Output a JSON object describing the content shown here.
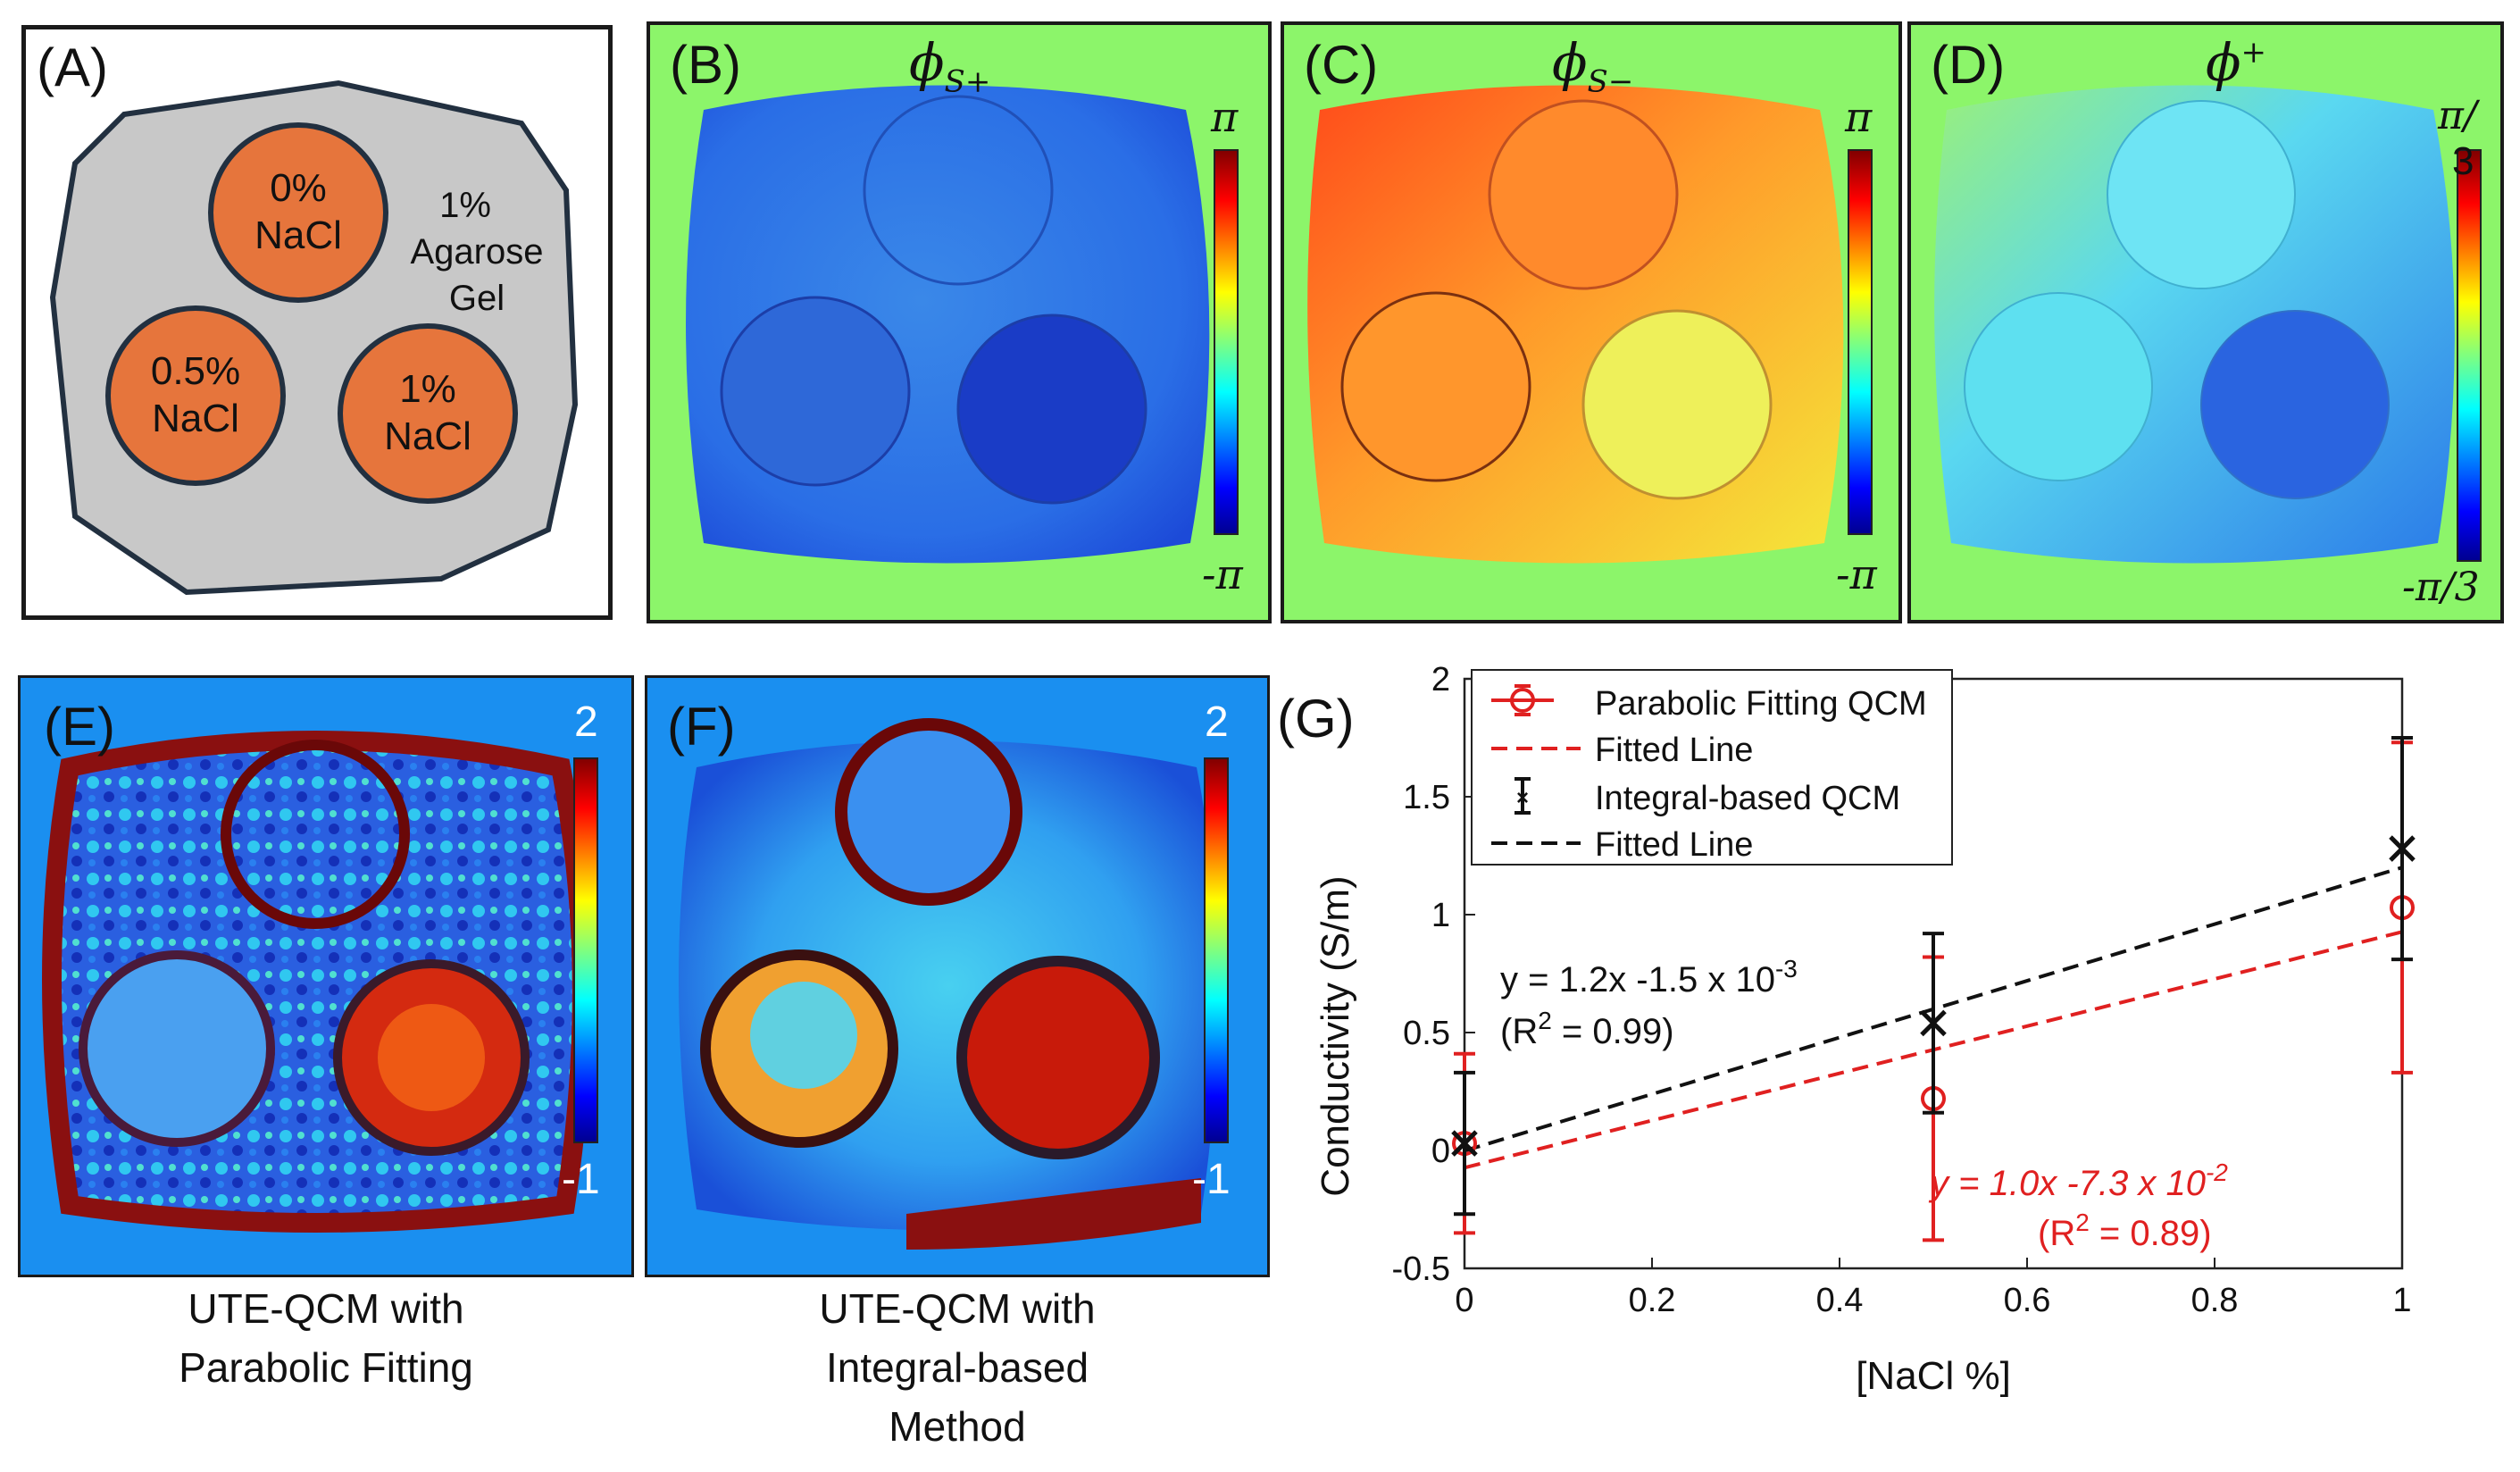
{
  "panel_a": {
    "label": "(A)",
    "circle_top": {
      "line1": "0%",
      "line2": "NaCl"
    },
    "circle_left": {
      "line1": "0.5%",
      "line2": "NaCl"
    },
    "circle_right": {
      "line1": "1%",
      "line2": "NaCl"
    },
    "gel": {
      "line1": "1%",
      "line2": "Agarose",
      "line3": "Gel"
    }
  },
  "panel_b": {
    "label": "(B)",
    "title_base": "ϕ",
    "title_sub": "S+",
    "cbar_max": "π",
    "cbar_min": "-π"
  },
  "panel_c": {
    "label": "(C)",
    "title_base": "ϕ",
    "title_sub": "S−",
    "cbar_max": "π",
    "cbar_min": "-π"
  },
  "panel_d": {
    "label": "(D)",
    "title_base": "ϕ",
    "title_sup": "+",
    "cbar_max_1": "π/",
    "cbar_max_2": "3",
    "cbar_min": "-π/3"
  },
  "panel_e": {
    "label": "(E)",
    "cbar_max": "2",
    "cbar_min": "-1",
    "caption_1": "UTE-QCM with",
    "caption_2": "Parabolic Fitting"
  },
  "panel_f": {
    "label": "(F)",
    "cbar_max": "2",
    "cbar_min": "-1",
    "caption_1": "UTE-QCM with",
    "caption_2": "Integral-based",
    "caption_3": "Method"
  },
  "colors": {
    "map_bg_green": "#8cf56a",
    "map_bg_blue": "#1a8ff0",
    "orange": "#e6753c",
    "gel_gray": "#c8c8c8",
    "red_series": "#e02020",
    "black_series": "#111111"
  },
  "chart_data": {
    "type": "scatter",
    "label": "(G)",
    "xlabel": "[NaCl %]",
    "ylabel": "Conductivity (S/m)",
    "xlim": [
      0,
      1
    ],
    "ylim": [
      -0.5,
      2
    ],
    "xticks": [
      0,
      0.2,
      0.4,
      0.6,
      0.8,
      1
    ],
    "xtick_labels": [
      "0",
      "0.2",
      "0.4",
      "0.6",
      "0.8",
      "1"
    ],
    "yticks": [
      -0.5,
      0,
      0.5,
      1,
      1.5,
      2
    ],
    "ytick_labels": [
      "-0.5",
      "0",
      "0.5",
      "1",
      "1.5",
      "2"
    ],
    "legend_position": "top-left",
    "series": [
      {
        "name": "Parabolic Fitting QCM",
        "marker": "circle",
        "color": "#e02020",
        "x": [
          0,
          0.5,
          1
        ],
        "y": [
          0.03,
          0.22,
          1.03
        ],
        "err": [
          0.38,
          0.6,
          0.7
        ]
      },
      {
        "name": "Fitted Line",
        "style": "dashed",
        "color": "#e02020",
        "x": [
          0,
          1
        ],
        "y": [
          -0.073,
          0.927
        ]
      },
      {
        "name": "Integral-based QCM",
        "marker": "x",
        "color": "#111111",
        "x": [
          0,
          0.5,
          1
        ],
        "y": [
          0.03,
          0.54,
          1.28
        ],
        "err": [
          0.3,
          0.38,
          0.47
        ]
      },
      {
        "name": "Fitted Line",
        "style": "dashed",
        "color": "#111111",
        "x": [
          0,
          1
        ],
        "y": [
          -0.0015,
          1.2
        ]
      }
    ],
    "annotations": {
      "black_eq": "y = 1.2x -1.5 x 10",
      "black_eq_exp": "-3",
      "black_r2": "(R",
      "black_r2_sup": "2",
      "black_r2_val": " = 0.99)",
      "red_eq_y": "y",
      "red_eq_mid": " = 1.0",
      "red_eq_x": "x",
      "red_eq_rest": " -7.3 x 10",
      "red_eq_exp": "-2",
      "red_r2": "(R",
      "red_r2_sup": "2",
      "red_r2_val": " = 0.89)"
    }
  }
}
